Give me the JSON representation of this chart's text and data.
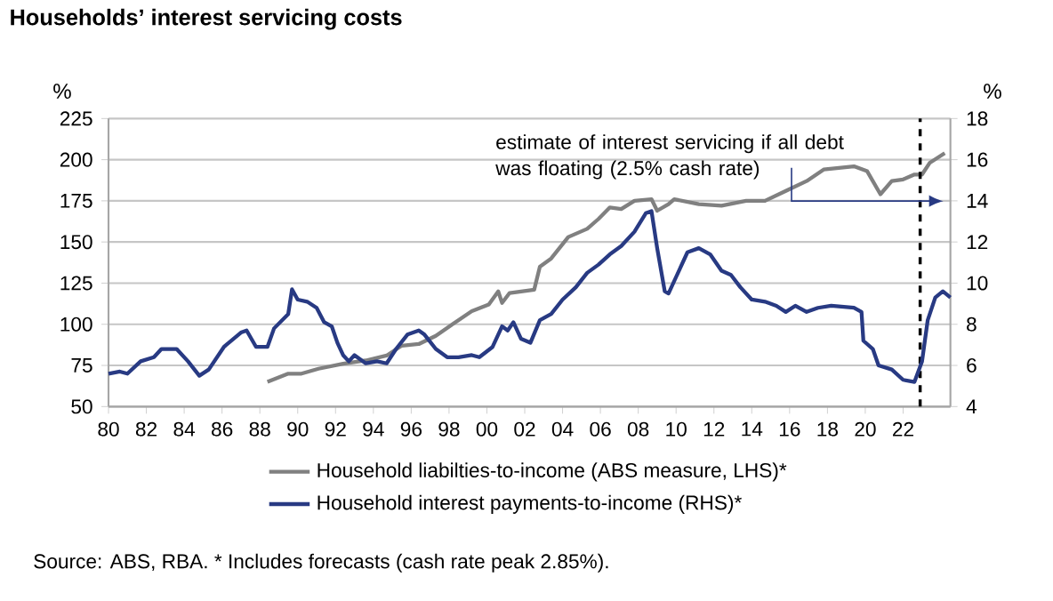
{
  "chart_data": {
    "type": "line",
    "title": "Households’ interest servicing costs",
    "ylabel": "%",
    "y2label": "%",
    "xlim": [
      1980,
      2024.5
    ],
    "xticks": [
      {
        "value": 1980,
        "label": "80"
      },
      {
        "value": 1982,
        "label": "82"
      },
      {
        "value": 1984,
        "label": "84"
      },
      {
        "value": 1986,
        "label": "86"
      },
      {
        "value": 1988,
        "label": "88"
      },
      {
        "value": 1990,
        "label": "90"
      },
      {
        "value": 1992,
        "label": "92"
      },
      {
        "value": 1994,
        "label": "94"
      },
      {
        "value": 1996,
        "label": "96"
      },
      {
        "value": 1998,
        "label": "98"
      },
      {
        "value": 2000,
        "label": "00"
      },
      {
        "value": 2002,
        "label": "02"
      },
      {
        "value": 2004,
        "label": "04"
      },
      {
        "value": 2006,
        "label": "06"
      },
      {
        "value": 2008,
        "label": "08"
      },
      {
        "value": 2010,
        "label": "10"
      },
      {
        "value": 2012,
        "label": "12"
      },
      {
        "value": 2014,
        "label": "14"
      },
      {
        "value": 2016,
        "label": "16"
      },
      {
        "value": 2018,
        "label": "18"
      },
      {
        "value": 2020,
        "label": "20"
      },
      {
        "value": 2022,
        "label": "22"
      }
    ],
    "ylim": [
      50,
      225
    ],
    "yticks": [
      50,
      75,
      100,
      125,
      150,
      175,
      200,
      225
    ],
    "y2lim": [
      4,
      18
    ],
    "y2ticks": [
      4,
      6,
      8,
      10,
      12,
      14,
      16,
      18
    ],
    "grid": "y",
    "legend": "bottom",
    "marker": "none",
    "line_style": "solid",
    "series": [
      {
        "name": "Household liabilties-to-income (ABS measure, LHS)*",
        "color": "#808080",
        "x": [
          1988.4,
          1989.5,
          1990.2,
          1991.1,
          1992.4,
          1993.6,
          1994.7,
          1995.5,
          1996.4,
          1997.3,
          1998.3,
          1999.2,
          2000.1,
          2000.6,
          2000.8,
          2001.2,
          2002.5,
          2002.8,
          2003.4,
          2004.3,
          2005.3,
          2005.9,
          2006.5,
          2007.1,
          2007.8,
          2008.7,
          2009.0,
          2009.6,
          2009.9,
          2011.2,
          2012.4,
          2013.7,
          2014.7,
          2015.8,
          2016.9,
          2017.8,
          2019.4,
          2020.1,
          2020.8,
          2021.4,
          2022.0,
          2022.6,
          2023.0,
          2023.4,
          2024.2
        ],
        "values": [
          65,
          70,
          70,
          73,
          76,
          78,
          81,
          87,
          88,
          93,
          101,
          108,
          112,
          120,
          113,
          119,
          121,
          135,
          140,
          153,
          158,
          164,
          171,
          170,
          175,
          176,
          169,
          173,
          176,
          173,
          172,
          175,
          175,
          181,
          187,
          194,
          196,
          193,
          179,
          187,
          188,
          191,
          191,
          198,
          204
        ]
      },
      {
        "name": "Household interest payments-to-income (RHS)*",
        "color": "#283a83",
        "axis": "y2",
        "x": [
          1980.0,
          1980.6,
          1981.0,
          1981.7,
          1982.4,
          1982.8,
          1983.6,
          1984.2,
          1984.8,
          1985.3,
          1986.1,
          1987.0,
          1987.3,
          1987.8,
          1988.4,
          1988.75,
          1989.5,
          1989.7,
          1990.0,
          1990.5,
          1991.0,
          1991.4,
          1991.8,
          1992.1,
          1992.4,
          1992.7,
          1993.0,
          1993.6,
          1994.2,
          1994.7,
          1995.2,
          1995.8,
          1996.4,
          1996.7,
          1997.3,
          1997.9,
          1998.5,
          1999.2,
          1999.6,
          2000.3,
          2000.8,
          2001.1,
          2001.4,
          2001.8,
          2002.3,
          2002.8,
          2003.4,
          2004.0,
          2004.7,
          2005.3,
          2005.9,
          2006.5,
          2007.1,
          2007.8,
          2008.4,
          2008.7,
          2009.0,
          2009.4,
          2009.6,
          2010.1,
          2010.6,
          2011.2,
          2011.8,
          2012.4,
          2012.9,
          2013.4,
          2014.0,
          2014.7,
          2015.3,
          2015.8,
          2016.3,
          2016.9,
          2017.5,
          2018.2,
          2019.4,
          2019.8,
          2019.9,
          2020.4,
          2020.7,
          2021.4,
          2022.0,
          2022.6,
          2023.0,
          2023.3,
          2023.7,
          2024.1,
          2024.5
        ],
        "values": [
          5.6,
          5.7,
          5.6,
          6.2,
          6.4,
          6.8,
          6.8,
          6.2,
          5.5,
          5.8,
          6.9,
          7.6,
          7.7,
          6.9,
          6.9,
          7.8,
          8.5,
          9.7,
          9.2,
          9.1,
          8.8,
          8.1,
          7.9,
          7.1,
          6.5,
          6.2,
          6.5,
          6.1,
          6.2,
          6.1,
          6.8,
          7.5,
          7.7,
          7.5,
          6.8,
          6.4,
          6.4,
          6.5,
          6.4,
          6.9,
          7.9,
          7.7,
          8.1,
          7.3,
          7.1,
          8.2,
          8.5,
          9.2,
          9.8,
          10.5,
          10.9,
          11.4,
          11.8,
          12.5,
          13.4,
          13.5,
          11.7,
          9.6,
          9.5,
          10.5,
          11.5,
          11.7,
          11.4,
          10.6,
          10.4,
          9.8,
          9.2,
          9.1,
          8.9,
          8.6,
          8.9,
          8.6,
          8.8,
          8.9,
          8.8,
          8.6,
          7.2,
          6.8,
          6.0,
          5.8,
          5.3,
          5.2,
          6.2,
          8.2,
          9.3,
          9.6,
          9.3
        ]
      }
    ],
    "ref_lines": [
      {
        "axis": "x",
        "value": 2022.9,
        "color": "#000000",
        "line_style": "dashed"
      }
    ],
    "annotations": [
      "estimate of interest servicing if all debt was floating (2.5% cash rate)",
      "Source: ABS, RBA. * Includes forecasts (cash rate peak 2.85%)."
    ]
  }
}
